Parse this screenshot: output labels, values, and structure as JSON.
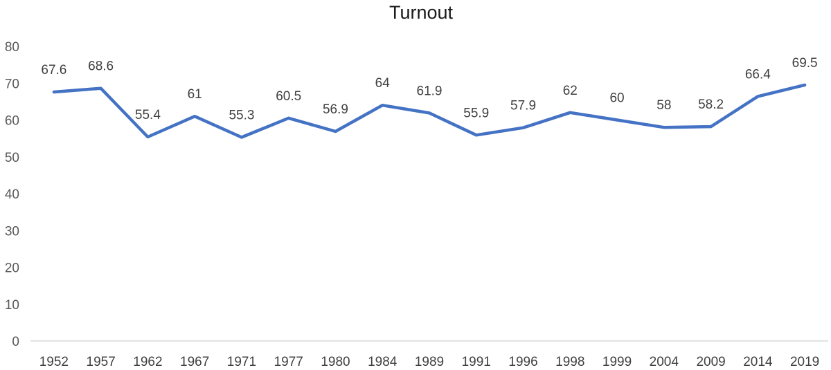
{
  "chart_data": {
    "type": "line",
    "title": "Turnout",
    "xlabel": "",
    "ylabel": "",
    "ylim": [
      0,
      80
    ],
    "y_ticks": [
      "0",
      "10",
      "20",
      "30",
      "40",
      "50",
      "60",
      "70",
      "80"
    ],
    "grid": false,
    "legend": "none",
    "line_color": "#4472C4",
    "categories": [
      "1952",
      "1957",
      "1962",
      "1967",
      "1971",
      "1977",
      "1980",
      "1984",
      "1989",
      "1991",
      "1996",
      "1998",
      "1999",
      "2004",
      "2009",
      "2014",
      "2019"
    ],
    "series": [
      {
        "values": [
          67.6,
          68.6,
          55.4,
          61,
          55.3,
          60.5,
          56.9,
          64,
          61.9,
          55.9,
          57.9,
          62,
          60,
          58,
          58.2,
          66.4,
          69.5
        ],
        "labels": [
          "67.6",
          "68.6",
          "55.4",
          "61",
          "55.3",
          "60.5",
          "56.9",
          "64",
          "61.9",
          "55.9",
          "57.9",
          "62",
          "60",
          "58",
          "58.2",
          "66.4",
          "69.5"
        ]
      }
    ]
  }
}
